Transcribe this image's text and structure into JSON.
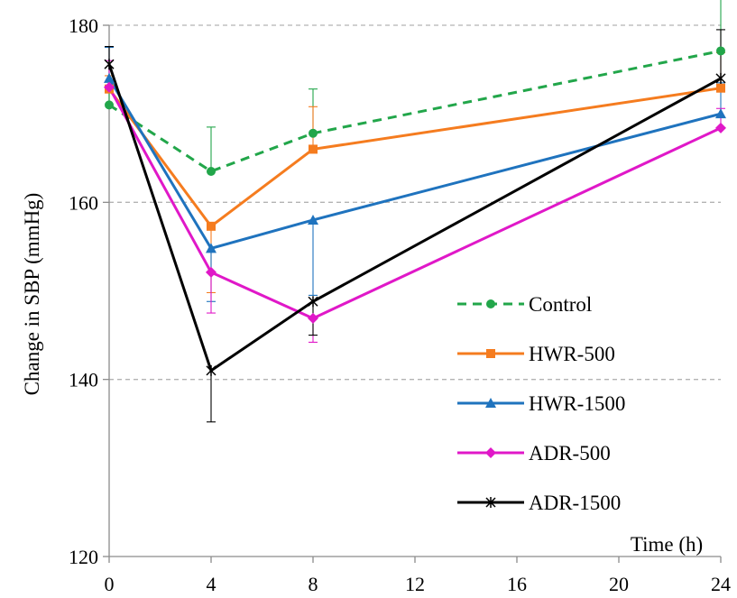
{
  "chart_data": {
    "type": "line",
    "title": "",
    "xlabel": "Time (h)",
    "ylabel": "Change in SBP (mmHg)",
    "xlim": [
      0,
      24
    ],
    "ylim": [
      120,
      180
    ],
    "xticks": [
      0,
      4,
      8,
      12,
      16,
      20,
      24
    ],
    "yticks": [
      120,
      140,
      160,
      180
    ],
    "grid": "horizontal dashed",
    "legend_position": "right",
    "x": [
      0,
      4,
      8,
      24
    ],
    "series": [
      {
        "name": "Control",
        "values": [
          171,
          163.5,
          167.8,
          177.1
        ],
        "error": [
          1.5,
          5.0,
          5.0,
          6.0
        ],
        "color": "#22a64a",
        "dash": "dashed",
        "marker": "circle"
      },
      {
        "name": "HWR-500",
        "values": [
          172.8,
          157.3,
          166,
          172.9
        ],
        "error": [
          1.5,
          7.5,
          4.8,
          4.0
        ],
        "color": "#f57c1f",
        "dash": "solid",
        "marker": "square"
      },
      {
        "name": "HWR-1500",
        "values": [
          174,
          154.8,
          158,
          170
        ],
        "error": [
          3.5,
          6.0,
          8.5,
          3.5
        ],
        "color": "#1f73be",
        "dash": "solid",
        "marker": "triangle"
      },
      {
        "name": "ADR-500",
        "values": [
          173,
          152.1,
          146.9,
          168.4
        ],
        "error": [
          3.0,
          4.6,
          2.7,
          2.2
        ],
        "color": "#e018c8",
        "dash": "solid",
        "marker": "diamond"
      },
      {
        "name": "ADR-1500",
        "values": [
          175.6,
          141,
          148.8,
          174
        ],
        "error": [
          2.0,
          5.8,
          3.8,
          5.5
        ],
        "color": "#000000",
        "dash": "solid",
        "marker": "star"
      }
    ]
  }
}
